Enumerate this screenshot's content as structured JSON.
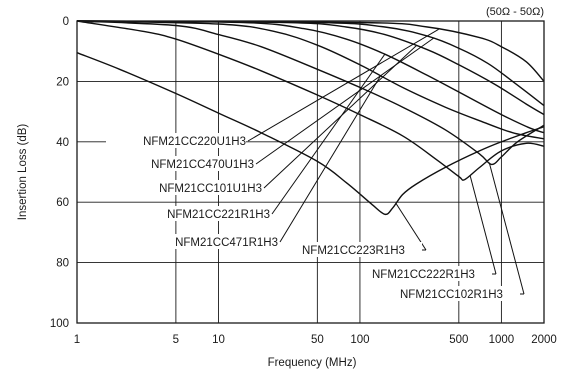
{
  "chart_data": {
    "type": "line",
    "title": "",
    "annotation": "(50Ω - 50Ω)",
    "xlabel": "Frequency (MHz)",
    "ylabel": "Insertion Loss (dB)",
    "xscale": "log",
    "xlim": [
      1,
      2000
    ],
    "ylim": [
      0,
      100
    ],
    "y_inverted": true,
    "grid": true,
    "x_ticks": [
      1,
      5,
      10,
      50,
      100,
      500,
      1000,
      2000
    ],
    "x_tick_labels": [
      "1",
      "5",
      "10",
      "50",
      "100",
      "500",
      "1000",
      "2000"
    ],
    "y_ticks": [
      0,
      20,
      40,
      60,
      80,
      100
    ],
    "y_tick_labels": [
      "0",
      "20",
      "40",
      "60",
      "80",
      "100"
    ],
    "series": [
      {
        "name": "NFM21CC220U1H3",
        "x": [
          1,
          100,
          300,
          700,
          1000,
          1500,
          2000
        ],
        "y": [
          0,
          0.5,
          2,
          5.5,
          8.5,
          13.5,
          20
        ]
      },
      {
        "name": "NFM21CC470U1H3",
        "x": [
          1,
          50,
          150,
          300,
          500,
          800,
          1200,
          2000
        ],
        "y": [
          0,
          0.5,
          2,
          5,
          9,
          14,
          20,
          28
        ]
      },
      {
        "name": "NFM21CC101U1H3",
        "x": [
          1,
          30,
          80,
          150,
          300,
          500,
          900,
          1500,
          2000
        ],
        "y": [
          0,
          0.5,
          2,
          4.5,
          9.5,
          14.5,
          21,
          27.5,
          31
        ]
      },
      {
        "name": "NFM21CC221R1H3",
        "x": [
          1,
          15,
          40,
          80,
          150,
          300,
          600,
          1000,
          1600,
          2000
        ],
        "y": [
          0,
          0.5,
          2.5,
          6,
          11,
          18,
          25.5,
          31,
          35.5,
          37
        ]
      },
      {
        "name": "NFM21CC471R1H3",
        "x": [
          1,
          10,
          25,
          50,
          100,
          200,
          400,
          700,
          1200,
          2000
        ],
        "y": [
          0,
          1,
          3.5,
          8,
          14.5,
          22,
          28.5,
          33,
          37,
          39
        ]
      },
      {
        "name": "NFM21CC102R1H3",
        "x": [
          1,
          5,
          10,
          20,
          50,
          100,
          200,
          400,
          700,
          850,
          1000,
          1300,
          2000
        ],
        "y": [
          0,
          1.5,
          4.5,
          8.5,
          16,
          22,
          28.5,
          36,
          44,
          47.5,
          45,
          40,
          34.5
        ]
      },
      {
        "name": "NFM21CC222R1H3",
        "x": [
          1,
          3,
          5,
          10,
          20,
          50,
          100,
          200,
          350,
          500,
          550,
          700,
          1000,
          1500,
          2000
        ],
        "y": [
          0,
          3.5,
          6,
          11,
          16.5,
          24.5,
          31,
          38,
          46,
          51.5,
          52.5,
          48.5,
          43,
          40.5,
          41.5
        ]
      },
      {
        "name": "NFM21CC223R1H3",
        "x": [
          1,
          2,
          5,
          10,
          20,
          50,
          80,
          120,
          150,
          170,
          200,
          250,
          400,
          700,
          1000,
          1500,
          2000
        ],
        "y": [
          10.5,
          16,
          24,
          30.5,
          37,
          46.5,
          53.5,
          60.5,
          64,
          62,
          57.5,
          54,
          48.5,
          43,
          40,
          37,
          35
        ]
      }
    ],
    "labels": [
      {
        "series": "NFM21CC220U1H3",
        "text": "NFM21CC220U1H3"
      },
      {
        "series": "NFM21CC470U1H3",
        "text": "NFM21CC470U1H3"
      },
      {
        "series": "NFM21CC101U1H3",
        "text": "NFM21CC101U1H3"
      },
      {
        "series": "NFM21CC221R1H3",
        "text": "NFM21CC221R1H3"
      },
      {
        "series": "NFM21CC471R1H3",
        "text": "NFM21CC471R1H3"
      },
      {
        "series": "NFM21CC223R1H3",
        "text": "NFM21CC223R1H3"
      },
      {
        "series": "NFM21CC222R1H3",
        "text": "NFM21CC222R1H3"
      },
      {
        "series": "NFM21CC102R1H3",
        "text": "NFM21CC102R1H3"
      }
    ]
  }
}
